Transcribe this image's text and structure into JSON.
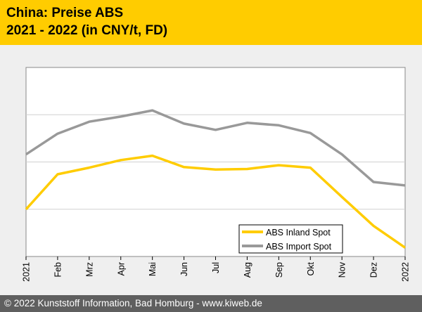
{
  "chart_data": {
    "type": "line",
    "title_line1": "China: Preise ABS",
    "title_line2": "2021 - 2022 (in CNY/t, FD)",
    "categories": [
      "2021",
      "Feb",
      "Mrz",
      "Apr",
      "Mai",
      "Jun",
      "Jul",
      "Aug",
      "Sep",
      "Okt",
      "Nov",
      "Dez",
      "2022"
    ],
    "ylim": [
      0,
      100
    ],
    "grid": true,
    "legend_position": "bottom-right",
    "series": [
      {
        "name": "ABS Inland Spot",
        "color": "#ffcc00",
        "values": [
          25.0,
          43.5,
          47.0,
          51.0,
          53.3,
          47.3,
          46.0,
          46.3,
          48.3,
          47.0,
          31.5,
          16.2,
          4.7
        ]
      },
      {
        "name": "ABS Import Spot",
        "color": "#999999",
        "values": [
          54.0,
          65.0,
          71.3,
          74.0,
          77.3,
          70.3,
          67.0,
          70.7,
          69.4,
          65.3,
          54.0,
          39.4,
          37.6
        ]
      }
    ]
  },
  "footer": {
    "text": "© 2022 Kunststoff Information, Bad Homburg - www.kiweb.de"
  }
}
